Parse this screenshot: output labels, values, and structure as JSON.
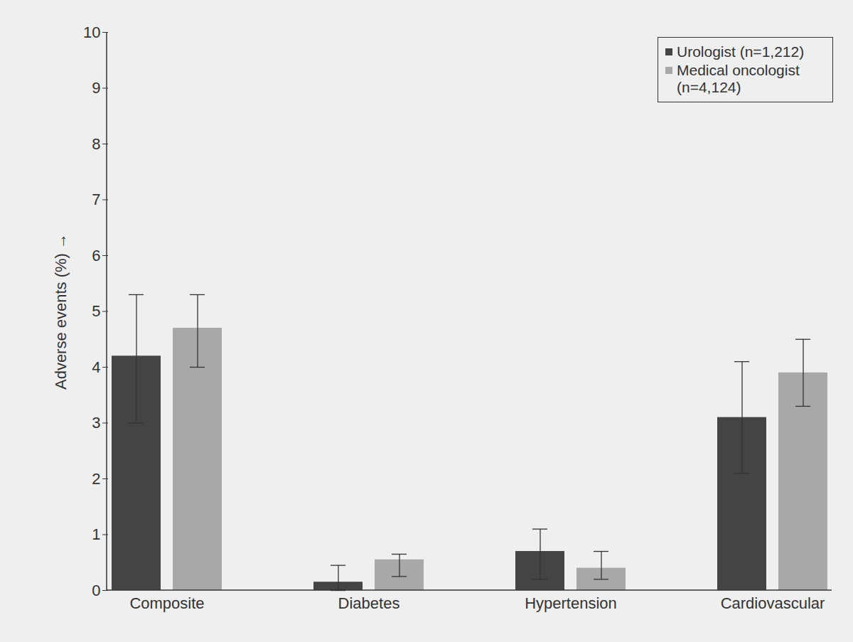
{
  "chart_data": {
    "type": "bar",
    "y_label": "Adverse events (%)",
    "categories": [
      "Composite",
      "Diabetes",
      "Hypertension",
      "Cardiovascular"
    ],
    "series": [
      {
        "name": "Urologist (n=1,212)",
        "color": "#444444",
        "values": [
          4.2,
          0.15,
          0.7,
          3.1
        ],
        "error_bars": [
          [
            3.0,
            5.3
          ],
          [
            0,
            0.45
          ],
          [
            0.2,
            1.1
          ],
          [
            2.1,
            4.1
          ]
        ]
      },
      {
        "name": "Medical oncologist (n=4,124)",
        "color": "#a8a8a8",
        "values": [
          4.7,
          0.55,
          0.4,
          3.9
        ],
        "error_bars": [
          [
            4.0,
            5.3
          ],
          [
            0.25,
            0.65
          ],
          [
            0.2,
            0.7
          ],
          [
            3.3,
            4.5
          ]
        ]
      }
    ],
    "ylim": [
      0,
      10
    ],
    "yticks": [
      0,
      1,
      2,
      3,
      4,
      5,
      6,
      7,
      8,
      9,
      10
    ],
    "legend": "top-right"
  }
}
